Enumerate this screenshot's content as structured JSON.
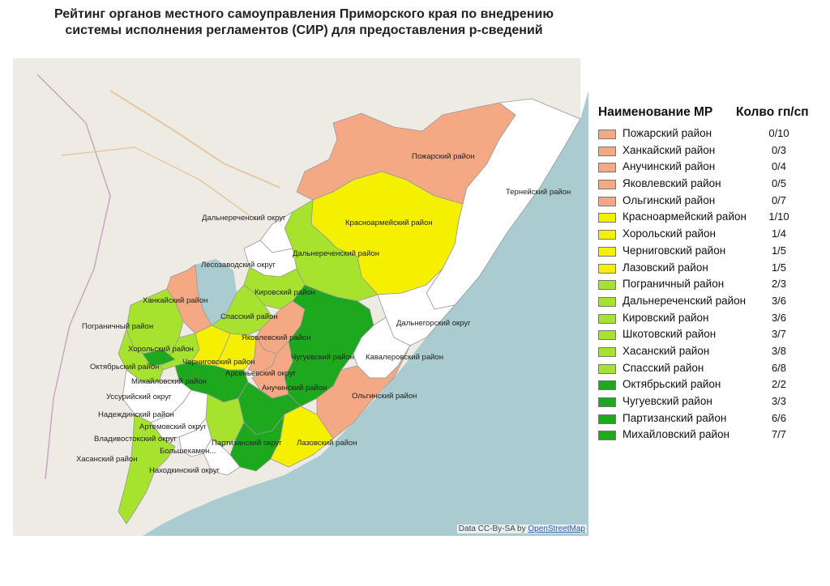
{
  "title_line1": "Рейтинг органов местного самоуправления Приморского края по внедрению",
  "title_line2": "системы исполнения регламентов (СИР) для предоставления р-сведений",
  "attribution_text": "Data CC-By-SA by",
  "attribution_link": "OpenStreetMap",
  "colors": {
    "salmon": "#f4a984",
    "yellow": "#f4f000",
    "light_green": "#a6e22e",
    "dark_green": "#1ea81e",
    "white": "#ffffff",
    "sea": "#aacbcf",
    "land_bg": "#eeeae4"
  },
  "legend": {
    "header_name": "Наименование МР",
    "header_count": "Колво гп/сп",
    "items": [
      {
        "name": "Пожарский район",
        "count": "0/10",
        "color": "#f4a984"
      },
      {
        "name": "Ханкайский район",
        "count": "0/3",
        "color": "#f4a984"
      },
      {
        "name": "Анучинский район",
        "count": "0/4",
        "color": "#f4a984"
      },
      {
        "name": "Яковлевский район",
        "count": "0/5",
        "color": "#f4a984"
      },
      {
        "name": "Ольгинский район",
        "count": "0/7",
        "color": "#f4a984"
      },
      {
        "name": "Красноармейский район",
        "count": "1/10",
        "color": "#f4f000"
      },
      {
        "name": "Хорольский район",
        "count": "1/4",
        "color": "#f4f000"
      },
      {
        "name": "Черниговский район",
        "count": "1/5",
        "color": "#f4f000"
      },
      {
        "name": "Лазовский район",
        "count": "1/5",
        "color": "#f4f000"
      },
      {
        "name": "Пограничный район",
        "count": "2/3",
        "color": "#a6e22e"
      },
      {
        "name": "Дальнереченский район",
        "count": "3/6",
        "color": "#a6e22e"
      },
      {
        "name": "Кировский район",
        "count": "3/6",
        "color": "#a6e22e"
      },
      {
        "name": "Шкотовский район",
        "count": "3/7",
        "color": "#a6e22e"
      },
      {
        "name": "Хасанский район",
        "count": "3/8",
        "color": "#a6e22e"
      },
      {
        "name": "Спасский район",
        "count": "6/8",
        "color": "#a6e22e"
      },
      {
        "name": "Октябрьский район",
        "count": "2/2",
        "color": "#1ea81e"
      },
      {
        "name": "Чугуевский район",
        "count": "3/3",
        "color": "#1ea81e"
      },
      {
        "name": "Партизанский район",
        "count": "6/6",
        "color": "#1ea81e"
      },
      {
        "name": "Михайловский район",
        "count": "7/7",
        "color": "#1ea81e"
      }
    ]
  },
  "map_labels": {
    "pozharsky": "Пожарский район",
    "terneysky": "Тернейский район",
    "krasnoarmeysky": "Красноармейский район",
    "dalnerechensky_okrug": "Дальнереченский округ",
    "dalnerechensky_rayon": "Дальнереченский район",
    "lesozavodsky": "Лесозаводский округ",
    "kirovsky": "Кировский район",
    "khankaysky": "Ханкайский район",
    "spassky": "Спасский район",
    "pogranichny": "Пограничный район",
    "yakovlevsky": "Яковлевский район",
    "dalnegorsky": "Дальнегорский округ",
    "khorolsky": "Хорольский район",
    "chernigovsky": "Черниговский район",
    "chuguevsky": "Чугуевский район",
    "kavalerovsky": "Кавалеровский район",
    "oktyabrsky": "Октябрьский район",
    "arsenyevsky": "Арсеньевский округ",
    "mikhaylovsky": "Михайловский район",
    "anuchinsky": "Анучинский район",
    "olginsky": "Ольгинский район",
    "ussuriysky": "Уссурийский округ",
    "nadezhdinsky": "Надеждинский район",
    "artemovsky": "Артемовский округ",
    "vladivostoksky": "Владивостокский округ",
    "partizansky_okrug": "Партизанский округ",
    "lazovsky": "Лазовский район",
    "bolshekamensky": "Большекамен...",
    "khasansky": "Хасанский район",
    "nakhodkinsky": "Находкинский округ"
  }
}
